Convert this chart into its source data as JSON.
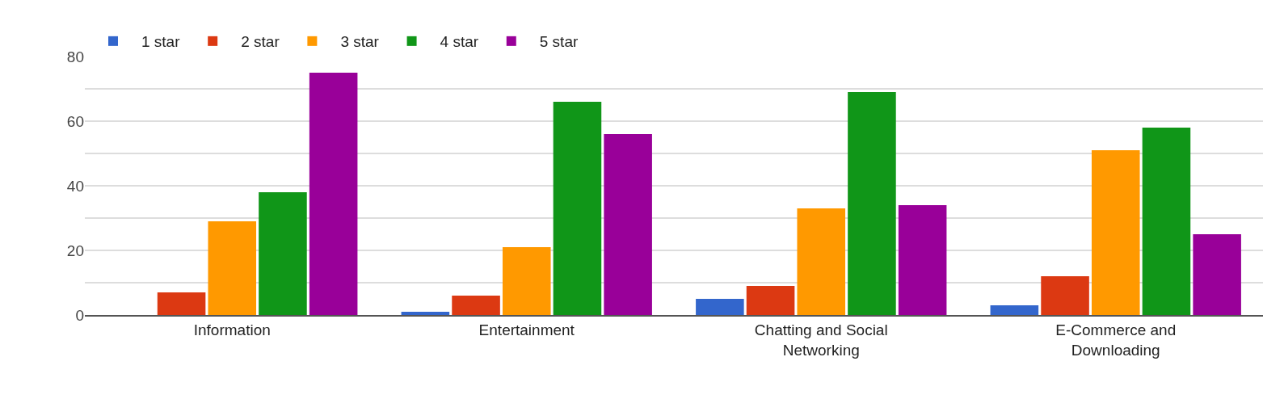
{
  "chart_data": {
    "type": "bar",
    "categories": [
      "Information",
      "Entertainment",
      "Chatting and Social Networking",
      "E-Commerce and Downloading"
    ],
    "series": [
      {
        "name": "1 star",
        "color": "#3366cc",
        "values": [
          0,
          1,
          5,
          3
        ]
      },
      {
        "name": "2 star",
        "color": "#dc3912",
        "values": [
          7,
          6,
          9,
          12
        ]
      },
      {
        "name": "3 star",
        "color": "#ff9900",
        "values": [
          29,
          21,
          33,
          51
        ]
      },
      {
        "name": "4 star",
        "color": "#109618",
        "values": [
          38,
          66,
          69,
          58
        ]
      },
      {
        "name": "5 star",
        "color": "#990099",
        "values": [
          75,
          56,
          34,
          25
        ]
      }
    ],
    "ylim": [
      0,
      80
    ],
    "yticks": [
      0,
      {
        "value": 10,
        "label": null
      },
      20,
      {
        "value": 30,
        "label": null
      },
      40,
      {
        "value": 50,
        "label": null
      },
      60,
      {
        "value": 70,
        "label": null
      },
      80
    ],
    "grid": "y",
    "legend": "top left"
  }
}
